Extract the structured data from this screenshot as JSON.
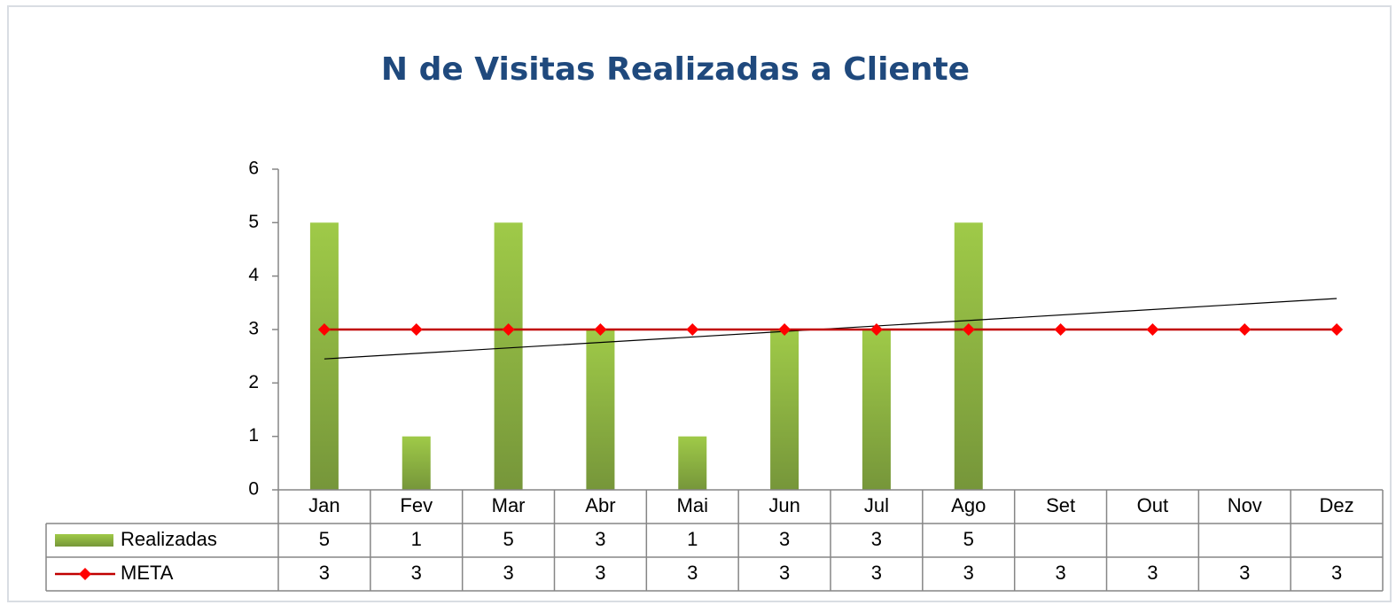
{
  "chart_data": {
    "type": "bar",
    "title": "N de Visitas Realizadas a Cliente",
    "categories": [
      "Jan",
      "Fev",
      "Mar",
      "Abr",
      "Mai",
      "Jun",
      "Jul",
      "Ago",
      "Set",
      "Out",
      "Nov",
      "Dez"
    ],
    "series": [
      {
        "name": "Realizadas",
        "type": "bar",
        "color": "#8db543",
        "values": [
          5,
          1,
          5,
          3,
          1,
          3,
          3,
          5,
          null,
          null,
          null,
          null
        ]
      },
      {
        "name": "META",
        "type": "line",
        "color": "#c00000",
        "marker_color": "#ff0000",
        "values": [
          3,
          3,
          3,
          3,
          3,
          3,
          3,
          3,
          3,
          3,
          3,
          3
        ]
      }
    ],
    "trendline": {
      "color": "#000000",
      "values": [
        2.45,
        3.58
      ]
    },
    "ylim": [
      0,
      6
    ],
    "yticks": [
      0,
      1,
      2,
      3,
      4,
      5,
      6
    ],
    "grid": false,
    "data_table": true
  }
}
